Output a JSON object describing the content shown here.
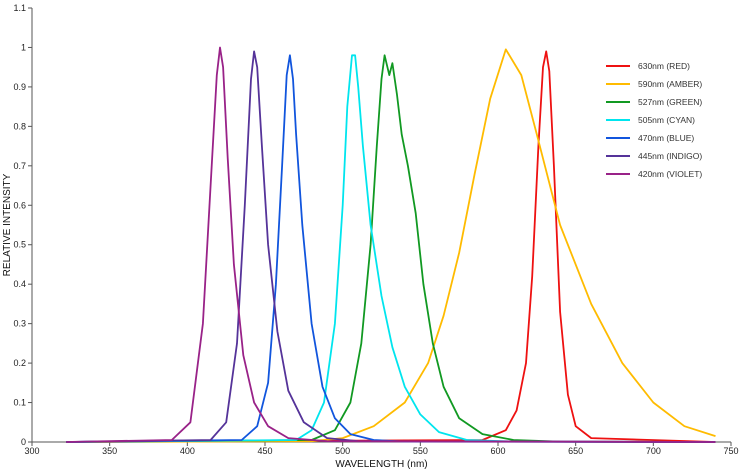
{
  "chart_data": {
    "type": "line",
    "title": "",
    "xlabel": "WAVELENGTH (nm)",
    "ylabel": "RELATIVE INTENSITY",
    "xlim": [
      300,
      750
    ],
    "ylim": [
      0,
      1.1
    ],
    "x_ticks": [
      300,
      350,
      400,
      450,
      500,
      550,
      600,
      650,
      700,
      750
    ],
    "y_ticks": [
      0,
      0.1,
      0.2,
      0.3,
      0.4,
      0.5,
      0.6,
      0.7,
      0.8,
      0.9,
      1,
      1.1
    ],
    "grid": false,
    "legend_position": "top-right",
    "series": [
      {
        "name": "630nm (RED)",
        "color": "#ee1111",
        "x": [
          322,
          590,
          605,
          612,
          618,
          622,
          626,
          629,
          631,
          633,
          636,
          640,
          645,
          650,
          660,
          740
        ],
        "y": [
          0,
          0.005,
          0.03,
          0.08,
          0.2,
          0.42,
          0.75,
          0.95,
          0.99,
          0.94,
          0.7,
          0.33,
          0.12,
          0.04,
          0.01,
          0
        ]
      },
      {
        "name": "590nm (AMBER)",
        "color": "#ffbb00",
        "x": [
          322,
          480,
          500,
          520,
          540,
          555,
          565,
          575,
          585,
          595,
          605,
          615,
          625,
          640,
          660,
          680,
          700,
          720,
          740
        ],
        "y": [
          0,
          0.002,
          0.01,
          0.04,
          0.1,
          0.2,
          0.32,
          0.48,
          0.68,
          0.87,
          0.995,
          0.93,
          0.78,
          0.55,
          0.35,
          0.2,
          0.1,
          0.04,
          0.015
        ]
      },
      {
        "name": "527nm (GREEN)",
        "color": "#119922",
        "x": [
          322,
          480,
          495,
          505,
          512,
          518,
          522,
          525,
          527,
          530,
          532,
          535,
          538,
          542,
          547,
          552,
          558,
          565,
          575,
          590,
          610,
          640,
          740
        ],
        "y": [
          0,
          0.005,
          0.03,
          0.1,
          0.25,
          0.5,
          0.75,
          0.92,
          0.98,
          0.93,
          0.96,
          0.88,
          0.78,
          0.7,
          0.58,
          0.4,
          0.25,
          0.14,
          0.06,
          0.02,
          0.005,
          0.001,
          0
        ]
      },
      {
        "name": "505nm (CYAN)",
        "color": "#00e5ee",
        "x": [
          322,
          470,
          480,
          488,
          495,
          500,
          503,
          506,
          508,
          510,
          513,
          518,
          525,
          532,
          540,
          550,
          562,
          580,
          610,
          740
        ],
        "y": [
          0,
          0.005,
          0.03,
          0.1,
          0.3,
          0.6,
          0.85,
          0.98,
          0.98,
          0.9,
          0.75,
          0.55,
          0.37,
          0.24,
          0.14,
          0.07,
          0.025,
          0.005,
          0.001,
          0
        ]
      },
      {
        "name": "470nm (BLUE)",
        "color": "#1155dd",
        "x": [
          322,
          435,
          445,
          452,
          457,
          461,
          464,
          466,
          468,
          470,
          474,
          480,
          487,
          495,
          505,
          520,
          540,
          740
        ],
        "y": [
          0,
          0.005,
          0.04,
          0.15,
          0.4,
          0.7,
          0.93,
          0.98,
          0.92,
          0.78,
          0.55,
          0.3,
          0.14,
          0.06,
          0.02,
          0.005,
          0.001,
          0
        ]
      },
      {
        "name": "445nm (INDIGO)",
        "color": "#553399",
        "x": [
          322,
          415,
          425,
          432,
          437,
          441,
          443,
          445,
          448,
          452,
          458,
          465,
          475,
          490,
          510,
          740
        ],
        "y": [
          0,
          0.005,
          0.05,
          0.25,
          0.6,
          0.92,
          0.99,
          0.95,
          0.75,
          0.5,
          0.28,
          0.13,
          0.05,
          0.01,
          0.002,
          0
        ]
      },
      {
        "name": "420nm (VIOLET)",
        "color": "#992288",
        "x": [
          322,
          390,
          402,
          410,
          415,
          419,
          421,
          423,
          426,
          430,
          436,
          443,
          452,
          465,
          490,
          740
        ],
        "y": [
          0,
          0.005,
          0.05,
          0.3,
          0.65,
          0.93,
          1.0,
          0.95,
          0.72,
          0.45,
          0.22,
          0.1,
          0.04,
          0.01,
          0.002,
          0
        ]
      }
    ]
  }
}
